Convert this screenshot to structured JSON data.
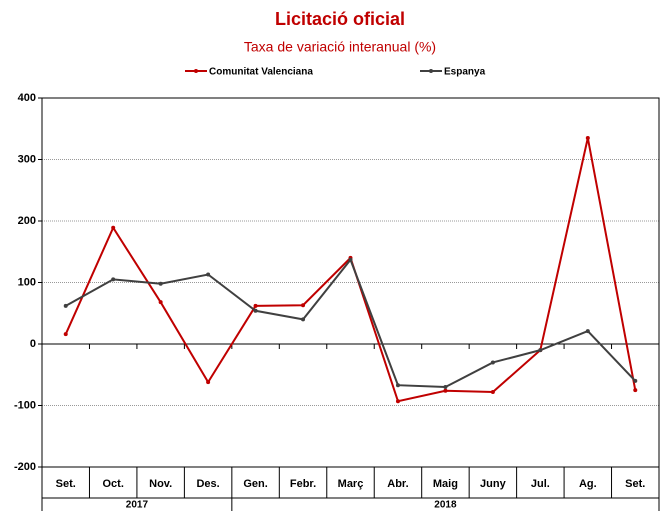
{
  "chart_data": {
    "type": "line",
    "title": "Licitació oficial",
    "subtitle": "Taxa de variació interanual (%)",
    "groups": [
      {
        "label": "2017",
        "categories": [
          "Set.",
          "Oct.",
          "Nov.",
          "Des."
        ]
      },
      {
        "label": "2018",
        "categories": [
          "Gen.",
          "Febr.",
          "Març",
          "Abr.",
          "Maig",
          "Juny",
          "Jul.",
          "Ag.",
          "Set."
        ]
      }
    ],
    "series": [
      {
        "name": "Comunitat Valenciana",
        "color": "#c00000",
        "values": [
          16,
          189,
          68,
          -62,
          62,
          63,
          140,
          -93,
          -76,
          -78,
          -10,
          335,
          -75
        ]
      },
      {
        "name": "Espanya",
        "color": "#404040",
        "values": [
          62,
          105,
          98,
          113,
          54,
          40,
          137,
          -67,
          -70,
          -30,
          -10,
          21,
          -60
        ]
      }
    ],
    "ylim": [
      -200,
      400
    ],
    "yticks": [
      -200,
      -100,
      0,
      100,
      200,
      300,
      400
    ],
    "grid": true,
    "legend": "top"
  }
}
